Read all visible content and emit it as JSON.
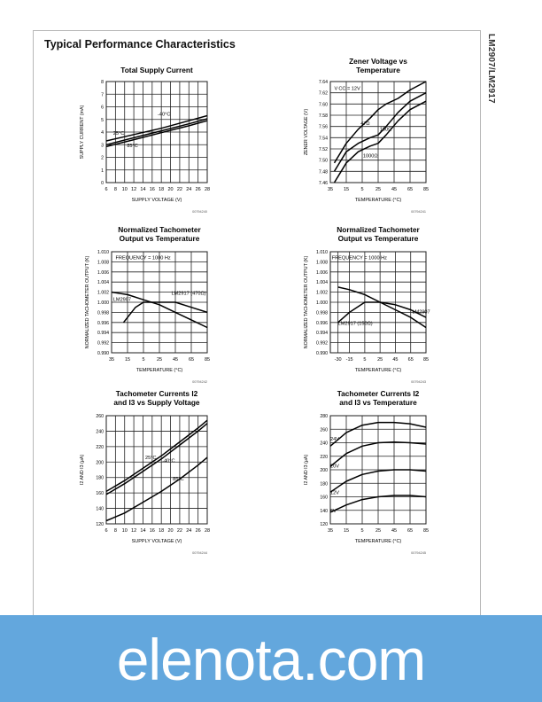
{
  "header": {
    "section_title": "Typical Performance Characteristics",
    "side_title": "LM2907/LM2917"
  },
  "footer": {
    "watermark": "elenota.com"
  },
  "chart_data": [
    {
      "id": "c1",
      "type": "line",
      "title": [
        "Total Supply Current"
      ],
      "xlabel": "SUPPLY VOLTAGE (V)",
      "ylabel": "SUPPLY CURRENT (mA)",
      "xlim": [
        6,
        28
      ],
      "ylim": [
        0,
        8
      ],
      "xticks": [
        6,
        8,
        10,
        12,
        14,
        16,
        18,
        20,
        22,
        24,
        26,
        28
      ],
      "xticklabels": [
        "6",
        "8",
        "10",
        "12",
        "14",
        "16",
        "18",
        "20",
        "22",
        "24",
        "26",
        "28"
      ],
      "yticks": [
        0,
        1,
        2,
        3,
        4,
        5,
        6,
        7,
        8
      ],
      "yticklabels": [
        "0",
        "1",
        "2",
        "3",
        "4",
        "5",
        "6",
        "7",
        "8"
      ],
      "grid": true,
      "code": "00794240",
      "series": [
        {
          "name": "-40°C",
          "x": [
            6,
            12,
            18,
            24,
            28
          ],
          "y": [
            3.3,
            3.8,
            4.3,
            4.9,
            5.3
          ]
        },
        {
          "name": "25°C",
          "x": [
            6,
            12,
            18,
            24,
            28
          ],
          "y": [
            3.0,
            3.55,
            4.1,
            4.65,
            5.05
          ]
        },
        {
          "name": "85°C",
          "x": [
            6,
            12,
            18,
            24,
            28
          ],
          "y": [
            2.85,
            3.4,
            3.95,
            4.5,
            4.9
          ]
        }
      ],
      "annotations": [
        {
          "text": "-40°C",
          "x": 17.2,
          "y": 5.3
        },
        {
          "text": "25°C",
          "x": 7.5,
          "y": 3.8
        },
        {
          "text": "85°C",
          "x": 10.5,
          "y": 2.8
        }
      ]
    },
    {
      "id": "c2",
      "type": "line",
      "title": [
        "Zener Voltage vs",
        "Temperature"
      ],
      "xlabel": "TEMPERATURE (°C)",
      "ylabel": "ZENER VOLTAGE (V)",
      "xlim": [
        -35,
        85
      ],
      "ylim": [
        7.46,
        7.64
      ],
      "xticks": [
        -35,
        -15,
        5,
        25,
        45,
        65,
        85
      ],
      "xticklabels": [
        "35",
        "15",
        "5",
        "25",
        "45",
        "65",
        "85"
      ],
      "yticks": [
        7.46,
        7.48,
        7.5,
        7.52,
        7.54,
        7.56,
        7.58,
        7.6,
        7.62,
        7.64
      ],
      "yticklabels": [
        "7.46",
        "7.48",
        "7.50",
        "7.52",
        "7.54",
        "7.56",
        "7.58",
        "7.60",
        "7.62",
        "7.64"
      ],
      "grid": true,
      "code": "00794241",
      "series": [
        {
          "name": "47Ω",
          "x": [
            -30,
            -15,
            0,
            15,
            25,
            35,
            50,
            65,
            85
          ],
          "y": [
            7.495,
            7.53,
            7.555,
            7.575,
            7.59,
            7.6,
            7.61,
            7.625,
            7.64
          ]
        },
        {
          "name": "100Ω",
          "x": [
            -30,
            -15,
            0,
            15,
            25,
            35,
            50,
            65,
            85
          ],
          "y": [
            7.48,
            7.515,
            7.53,
            7.54,
            7.545,
            7.56,
            7.585,
            7.605,
            7.62
          ]
        },
        {
          "name": "1000Ω",
          "x": [
            -30,
            -15,
            0,
            15,
            25,
            35,
            50,
            65,
            85
          ],
          "y": [
            7.46,
            7.495,
            7.515,
            7.525,
            7.53,
            7.545,
            7.57,
            7.59,
            7.605
          ]
        }
      ],
      "annotations": [
        {
          "text": "V CC = 12V",
          "x": -30,
          "y": 7.625
        },
        {
          "text": "47Ω",
          "x": 3,
          "y": 7.563
        },
        {
          "text": "100Ω",
          "x": 27,
          "y": 7.552
        },
        {
          "text": "1000Ω",
          "x": 6,
          "y": 7.505
        }
      ]
    },
    {
      "id": "c3",
      "type": "line",
      "title": [
        "Normalized Tachometer",
        "Output vs Temperature"
      ],
      "xlabel": "TEMPERATURE (°C)",
      "ylabel": "NORMALIZED TACHOMETER OUTPUT (K)",
      "xlim": [
        -35,
        85
      ],
      "ylim": [
        0.99,
        1.01
      ],
      "xticks": [
        -35,
        -15,
        5,
        25,
        45,
        65,
        85
      ],
      "xticklabels": [
        "35",
        "15",
        "5",
        "25",
        "45",
        "65",
        "85"
      ],
      "yticks": [
        0.99,
        0.992,
        0.994,
        0.996,
        0.998,
        1.0,
        1.002,
        1.004,
        1.006,
        1.008,
        1.01
      ],
      "yticklabels": [
        "0.990",
        "0.992",
        "0.994",
        "0.996",
        "0.998",
        "1.000",
        "1.002",
        "1.004",
        "1.006",
        "1.008",
        "1.010"
      ],
      "grid": true,
      "code": "00794242",
      "series": [
        {
          "name": "LM2907",
          "x": [
            -35,
            -15,
            5,
            25,
            45,
            65,
            85
          ],
          "y": [
            1.002,
            1.0015,
            1.0005,
            0.9995,
            0.998,
            0.9965,
            0.995
          ]
        },
        {
          "name": "LM2917 (470Ω)",
          "x": [
            -20,
            -5,
            5,
            25,
            45,
            65,
            85
          ],
          "y": [
            0.996,
            0.999,
            1.0,
            1.0,
            1.0,
            0.999,
            0.998
          ]
        }
      ],
      "annotations": [
        {
          "text": "FREQUENCY = 1000 Hz",
          "x": -30,
          "y": 1.0085
        },
        {
          "text": "LM2917 (470Ω)",
          "x": 40,
          "y": 1.0015
        },
        {
          "text": "LM2907",
          "x": -33,
          "y": 1.0003
        }
      ]
    },
    {
      "id": "c4",
      "type": "line",
      "title": [
        "Normalized Tachometer",
        "Output vs Temperature"
      ],
      "xlabel": "TEMPERATURE (°C)",
      "ylabel": "NORMALIZED TACHOMETER OUTPUT (K)",
      "xlim": [
        -40,
        85
      ],
      "ylim": [
        0.99,
        1.01
      ],
      "xticks": [
        -30,
        -15,
        5,
        25,
        45,
        65,
        85
      ],
      "xticklabels": [
        "-30",
        "-15",
        "5",
        "25",
        "45",
        "65",
        "85"
      ],
      "yticks": [
        0.99,
        0.992,
        0.994,
        0.996,
        0.998,
        1.0,
        1.002,
        1.004,
        1.006,
        1.008,
        1.01
      ],
      "yticklabels": [
        "0.990",
        "0.992",
        "0.994",
        "0.996",
        "0.998",
        "1.000",
        "1.002",
        "1.004",
        "1.006",
        "1.008",
        "1.010"
      ],
      "grid": true,
      "code": "00794243",
      "series": [
        {
          "name": "LM2907",
          "x": [
            -30,
            -15,
            5,
            25,
            45,
            65,
            85
          ],
          "y": [
            1.003,
            1.0025,
            1.0015,
            1.0,
            0.9985,
            0.997,
            0.995
          ]
        },
        {
          "name": "LM2917 (150Ω)",
          "x": [
            -30,
            -15,
            5,
            25,
            45,
            65,
            85
          ],
          "y": [
            0.996,
            0.998,
            1.0,
            1.0,
            0.9995,
            0.9985,
            0.997
          ]
        }
      ],
      "annotations": [
        {
          "text": "FREQUENCY = 1000 Hz",
          "x": -38,
          "y": 1.0085
        },
        {
          "text": "LM2907",
          "x": 67,
          "y": 0.9978
        },
        {
          "text": "LM2917 (150Ω)",
          "x": -30,
          "y": 0.9955
        }
      ]
    },
    {
      "id": "c5",
      "type": "line",
      "title": [
        "Tachometer Currents I2",
        "and I3 vs Supply Voltage"
      ],
      "xlabel": "SUPPLY VOLTAGE (V)",
      "ylabel": "I2 AND I3 (μA)",
      "xlim": [
        6,
        28
      ],
      "ylim": [
        120,
        260
      ],
      "xticks": [
        6,
        8,
        10,
        12,
        14,
        16,
        18,
        20,
        22,
        24,
        26,
        28
      ],
      "xticklabels": [
        "6",
        "8",
        "10",
        "12",
        "14",
        "16",
        "18",
        "20",
        "22",
        "24",
        "26",
        "28"
      ],
      "yticks": [
        120,
        140,
        160,
        180,
        200,
        220,
        240,
        260
      ],
      "yticklabels": [
        "120",
        "140",
        "160",
        "180",
        "200",
        "220",
        "240",
        "260"
      ],
      "grid": true,
      "code": "00794244",
      "series": [
        {
          "name": "-40°C",
          "x": [
            6,
            10,
            14,
            18,
            22,
            26,
            28
          ],
          "y": [
            162,
            176,
            192,
            208,
            226,
            244,
            254
          ]
        },
        {
          "name": "25°C",
          "x": [
            6,
            10,
            14,
            18,
            22,
            26,
            28
          ],
          "y": [
            158,
            172,
            188,
            204,
            222,
            240,
            250
          ]
        },
        {
          "name": "85°C",
          "x": [
            6,
            10,
            14,
            18,
            22,
            26,
            28
          ],
          "y": [
            124,
            134,
            148,
            162,
            178,
            196,
            206
          ]
        }
      ],
      "annotations": [
        {
          "text": "25°C",
          "x": 14.5,
          "y": 204
        },
        {
          "text": "-40°C",
          "x": 18.2,
          "y": 200
        },
        {
          "text": "85°C",
          "x": 20.5,
          "y": 176
        }
      ]
    },
    {
      "id": "c6",
      "type": "line",
      "title": [
        "Tachometer Currents I2",
        "and I3 vs Temperature"
      ],
      "xlabel": "TEMPERATURE (°C)",
      "ylabel": "I2 AND I3 (μA)",
      "xlim": [
        -35,
        85
      ],
      "ylim": [
        120,
        280
      ],
      "xticks": [
        -35,
        -15,
        5,
        25,
        45,
        65,
        85
      ],
      "xticklabels": [
        "35",
        "15",
        "5",
        "25",
        "45",
        "65",
        "85"
      ],
      "yticks": [
        120,
        140,
        160,
        180,
        200,
        220,
        240,
        260,
        280
      ],
      "yticklabels": [
        "120",
        "140",
        "160",
        "180",
        "200",
        "220",
        "240",
        "260",
        "280"
      ],
      "grid": true,
      "code": "00794245",
      "series": [
        {
          "name": "24V",
          "x": [
            -35,
            -15,
            5,
            25,
            45,
            65,
            85
          ],
          "y": [
            235,
            255,
            266,
            270,
            270,
            268,
            263
          ]
        },
        {
          "name": "20V",
          "x": [
            -35,
            -15,
            5,
            25,
            45,
            65,
            85
          ],
          "y": [
            205,
            224,
            235,
            240,
            241,
            240,
            238
          ]
        },
        {
          "name": "12V",
          "x": [
            -35,
            -15,
            5,
            25,
            45,
            65,
            85
          ],
          "y": [
            167,
            183,
            193,
            198,
            200,
            200,
            198
          ]
        },
        {
          "name": "6V",
          "x": [
            -35,
            -15,
            5,
            25,
            45,
            65,
            85
          ],
          "y": [
            137,
            148,
            156,
            160,
            162,
            162,
            160
          ]
        }
      ],
      "annotations": [
        {
          "text": "24V",
          "x": -35,
          "y": 243
        },
        {
          "text": "20V",
          "x": -35,
          "y": 203
        },
        {
          "text": "12V",
          "x": -35,
          "y": 164
        },
        {
          "text": "6V",
          "x": -35,
          "y": 137
        }
      ]
    }
  ]
}
